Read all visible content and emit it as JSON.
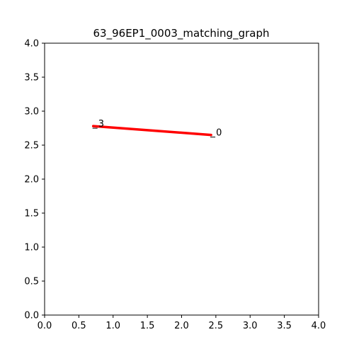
{
  "chart_data": {
    "type": "line",
    "title": "63_96EP1_0003_matching_graph",
    "xlabel": "",
    "ylabel": "",
    "xlim": [
      0,
      4
    ],
    "ylim": [
      0,
      4
    ],
    "x_ticks": [
      "0.0",
      "0.5",
      "1.0",
      "1.5",
      "2.0",
      "2.5",
      "3.0",
      "3.5",
      "4.0"
    ],
    "y_ticks": [
      "0.0",
      "0.5",
      "1.0",
      "1.5",
      "2.0",
      "2.5",
      "3.0",
      "3.5",
      "4.0"
    ],
    "grid": false,
    "nodes": [
      {
        "id": "3",
        "x": 0.71,
        "y": 2.78
      },
      {
        "id": "0",
        "x": 2.43,
        "y": 2.65
      }
    ],
    "edges": [
      {
        "from": "3",
        "to": "0",
        "color": "#ff0000"
      }
    ]
  }
}
